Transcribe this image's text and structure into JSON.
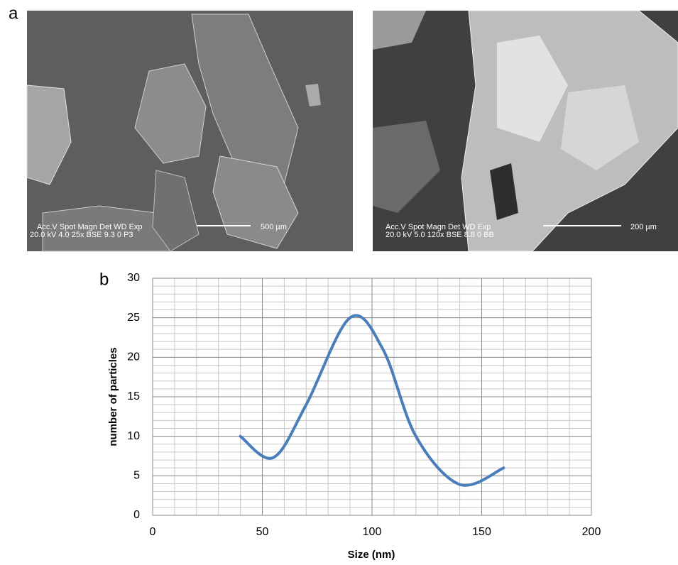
{
  "figure": {
    "label_a": "a",
    "label_b": "b",
    "images": [
      {
        "info_line1": "Acc.V   Spot Magn    Det   WD   Exp",
        "info_line2": "20.0 kV 4.0   25x    BSE  9.3   0      P3",
        "scale": "500 µm"
      },
      {
        "info_line1": "Acc.V   Spot Magn    Det   WD   Exp",
        "info_line2": "20.0 kV 5.0   120x   BSE  8.8   0      BB",
        "scale": "200 µm"
      }
    ]
  },
  "chart_data": {
    "type": "line",
    "x_label": "Size (nm)",
    "y_label": "number of particles",
    "x": [
      40,
      55,
      70,
      90,
      105,
      120,
      140,
      160
    ],
    "series": [
      {
        "color": "#4a7ebb",
        "values": [
          10,
          7.3,
          14,
          25,
          21,
          10,
          3.9,
          6
        ]
      }
    ],
    "xlim": [
      0,
      200
    ],
    "ylim": [
      0,
      30
    ],
    "xticks": [
      0,
      50,
      100,
      150,
      200
    ],
    "yticks": [
      0,
      5,
      10,
      15,
      20,
      25,
      30
    ],
    "grid": true,
    "minor_grid": {
      "x": 10,
      "y": 1
    },
    "smooth": true
  }
}
